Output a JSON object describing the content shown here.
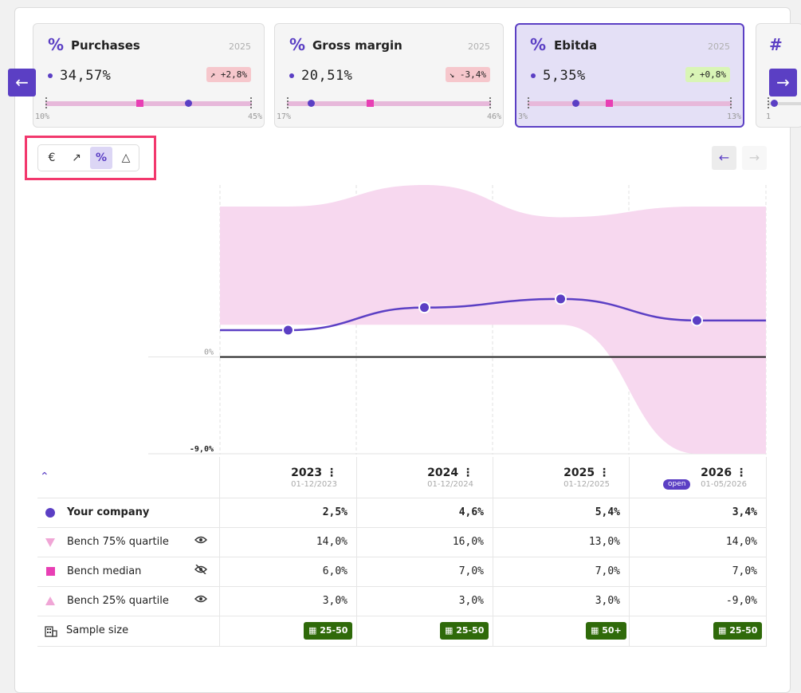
{
  "kpi_cards": [
    {
      "icon": "%",
      "title": "Purchases",
      "year": "2025",
      "value": "34,57%",
      "badge": "↗ +2,8%",
      "badge_type": "neg",
      "min": "10%",
      "max": "45%"
    },
    {
      "icon": "%",
      "title": "Gross margin",
      "year": "2025",
      "value": "20,51%",
      "badge": "↘ -3,4%",
      "badge_type": "neg",
      "min": "17%",
      "max": "46%"
    },
    {
      "icon": "%",
      "title": "Ebitda",
      "year": "2025",
      "value": "5,35%",
      "badge": "↗ +0,8%",
      "badge_type": "pos",
      "min": "3%",
      "max": "13%"
    },
    {
      "icon": "#",
      "title": "",
      "year": "",
      "value": "",
      "badge": "",
      "min": "1",
      "max": ""
    }
  ],
  "nav": {
    "prev": "←",
    "next": "→"
  },
  "toolbar": {
    "euro": "€",
    "trend": "↗",
    "percent": "%",
    "delta": "△"
  },
  "pager": {
    "prev": "←",
    "next": "→"
  },
  "chart_data": {
    "type": "line",
    "x": [
      "2023",
      "2024",
      "2025",
      "2026"
    ],
    "series": [
      {
        "name": "Your company",
        "values": [
          2.5,
          4.6,
          5.4,
          3.4
        ],
        "color": "#5b3fc4"
      },
      {
        "name": "Bench 75% quartile",
        "values": [
          14.0,
          16.0,
          13.0,
          14.0
        ]
      },
      {
        "name": "Bench median",
        "values": [
          6.0,
          7.0,
          7.0,
          7.0
        ]
      },
      {
        "name": "Bench 25% quartile",
        "values": [
          3.0,
          3.0,
          3.0,
          -9.0
        ]
      }
    ],
    "band_color": "#f7d8ef",
    "y_ticks": [
      "0%",
      "-9,0%"
    ],
    "ylim": [
      -9,
      16
    ]
  },
  "table": {
    "columns": [
      {
        "year": "2023",
        "date": "01-12/2023",
        "open": ""
      },
      {
        "year": "2024",
        "date": "01-12/2024",
        "open": ""
      },
      {
        "year": "2025",
        "date": "01-12/2025",
        "open": ""
      },
      {
        "year": "2026",
        "date": "01-05/2026",
        "open": "open"
      }
    ],
    "rows": [
      {
        "label": "Your company",
        "values": [
          "2,5%",
          "4,6%",
          "5,4%",
          "3,4%"
        ],
        "bold": true
      },
      {
        "label": "Bench 75% quartile",
        "values": [
          "14,0%",
          "16,0%",
          "13,0%",
          "14,0%"
        ]
      },
      {
        "label": "Bench median",
        "values": [
          "6,0%",
          "7,0%",
          "7,0%",
          "7,0%"
        ]
      },
      {
        "label": "Bench 25% quartile",
        "values": [
          "3,0%",
          "3,0%",
          "3,0%",
          "-9,0%"
        ]
      }
    ],
    "sample": {
      "label": "Sample size",
      "values": [
        "25-50",
        "25-50",
        "50+",
        "25-50"
      ]
    },
    "collapse_icon": "⌃",
    "kebab": "⋮"
  }
}
